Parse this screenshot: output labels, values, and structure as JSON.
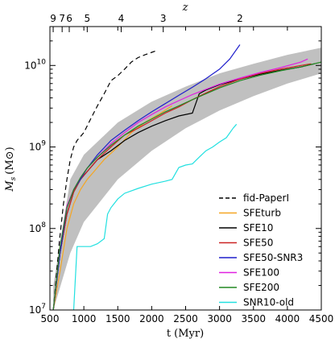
{
  "chart_data": {
    "type": "line",
    "xlabel": "t (Myr)",
    "ylabel_main": "M",
    "ylabel_sub": "s",
    "ylabel_unit": "(M",
    "ylabel_unit_sub": "⊙",
    "ylabel_close": ")",
    "top_axis_label": "z",
    "xlim": [
      500,
      4500
    ],
    "ylim": [
      10000000,
      30000000000
    ],
    "yscale": "log",
    "x_ticks": [
      500,
      1000,
      1500,
      2000,
      2500,
      3000,
      3500,
      4000,
      4500
    ],
    "x_tick_labels": [
      "500",
      "1000",
      "1500",
      "2000",
      "2500",
      "3000",
      "3500",
      "4000",
      "4500"
    ],
    "y_ticks": [
      10000000,
      100000000,
      1000000000,
      10000000000
    ],
    "y_tick_labels": [
      {
        "base": "10",
        "exp": "7"
      },
      {
        "base": "10",
        "exp": "8"
      },
      {
        "base": "10",
        "exp": "9"
      },
      {
        "base": "10",
        "exp": "10"
      }
    ],
    "top_ticks": [
      {
        "t": 548,
        "label": "9"
      },
      {
        "t": 680,
        "label": "7"
      },
      {
        "t": 785,
        "label": "6"
      },
      {
        "t": 1050,
        "label": "5"
      },
      {
        "t": 1550,
        "label": "4"
      },
      {
        "t": 2170,
        "label": "3"
      },
      {
        "t": 3300,
        "label": "2"
      }
    ],
    "legend_position": "lower-right",
    "band": {
      "color": "#c0c0c0",
      "x": [
        550,
        800,
        1000,
        1500,
        2000,
        2500,
        3000,
        3500,
        4000,
        4500
      ],
      "upper": [
        20000000,
        400000000,
        800000000,
        2000000000,
        3600000000,
        5500000000,
        8000000000,
        10500000000,
        13500000000,
        16500000000
      ],
      "lower": [
        10000000,
        50000000,
        120000000,
        400000000,
        900000000,
        1700000000,
        2800000000,
        4200000000,
        6000000000,
        8000000000
      ]
    },
    "series": [
      {
        "name": "fid-PaperI",
        "color": "#000000",
        "dash": "6,4",
        "x": [
          550,
          640,
          700,
          750,
          800,
          850,
          900,
          1000,
          1100,
          1200,
          1300,
          1400,
          1500,
          1600,
          1700,
          1800,
          1900,
          2000,
          2050
        ],
        "y": [
          10000000,
          70000000,
          200000000,
          400000000,
          700000000,
          1000000000,
          1200000000,
          1500000000,
          2200000000,
          3200000000,
          4500000000,
          6500000000,
          7500000000,
          9000000000,
          11000000000,
          12500000000,
          13500000000,
          14500000000,
          15000000000
        ]
      },
      {
        "name": "SFEturb",
        "color": "#f5a623",
        "dash": "",
        "x": [
          550,
          650,
          750,
          850,
          950,
          1050,
          1150,
          1300,
          1500,
          1700,
          1900,
          2100,
          2300
        ],
        "y": [
          10000000,
          30000000,
          100000000,
          200000000,
          300000000,
          400000000,
          500000000,
          700000000,
          1000000000,
          1500000000,
          2000000000,
          2500000000,
          3200000000
        ]
      },
      {
        "name": "SFE10",
        "color": "#000000",
        "dash": "",
        "x": [
          550,
          650,
          750,
          850,
          950,
          1050,
          1200,
          1400,
          1600,
          1800,
          2000,
          2200,
          2400,
          2600,
          2700,
          2800,
          3000,
          3300,
          3600,
          3900,
          4200,
          4400
        ],
        "y": [
          10000000,
          50000000,
          150000000,
          280000000,
          400000000,
          500000000,
          700000000,
          900000000,
          1200000000,
          1500000000,
          1800000000,
          2100000000,
          2400000000,
          2600000000,
          4500000000,
          5000000000,
          5800000000,
          6800000000,
          7800000000,
          8700000000,
          9600000000,
          10500000000
        ]
      },
      {
        "name": "SFE50",
        "color": "#cc2222",
        "dash": "",
        "x": [
          550,
          650,
          750,
          850,
          950,
          1050,
          1200,
          1400,
          1600,
          1800,
          2000,
          2200,
          2400,
          2600,
          2800,
          3000,
          3300,
          3600,
          3900,
          4200,
          4350
        ],
        "y": [
          10000000,
          50000000,
          150000000,
          280000000,
          400000000,
          500000000,
          700000000,
          1000000000,
          1400000000,
          1700000000,
          2100000000,
          2600000000,
          3100000000,
          3800000000,
          4600000000,
          5500000000,
          6800000000,
          8000000000,
          9000000000,
          10000000000,
          10500000000
        ]
      },
      {
        "name": "SFE50-SNR3",
        "color": "#1f1fcc",
        "dash": "",
        "x": [
          550,
          650,
          750,
          850,
          950,
          1050,
          1200,
          1400,
          1600,
          1800,
          2000,
          2200,
          2400,
          2600,
          2800,
          3000,
          3150,
          3300
        ],
        "y": [
          10000000,
          50000000,
          180000000,
          300000000,
          400000000,
          550000000,
          800000000,
          1200000000,
          1600000000,
          2100000000,
          2700000000,
          3400000000,
          4300000000,
          5400000000,
          6900000000,
          9000000000,
          12000000000,
          18000000000
        ]
      },
      {
        "name": "SFE100",
        "color": "#e020e0",
        "dash": "",
        "x": [
          550,
          650,
          750,
          850,
          950,
          1050,
          1200,
          1400,
          1600,
          1800,
          2000,
          2200,
          2400,
          2600,
          2800,
          3000,
          3300,
          3600,
          3900,
          4200,
          4300
        ],
        "y": [
          10000000,
          60000000,
          190000000,
          300000000,
          420000000,
          550000000,
          750000000,
          1100000000,
          1500000000,
          2000000000,
          2500000000,
          3100000000,
          3700000000,
          4400000000,
          5100000000,
          5900000000,
          7000000000,
          8200000000,
          9400000000,
          11000000000,
          12000000000
        ]
      },
      {
        "name": "SFE200",
        "color": "#228822",
        "dash": "",
        "x": [
          550,
          650,
          750,
          850,
          950,
          1050,
          1200,
          1400,
          1600,
          1800,
          2000,
          2200,
          2400,
          2600,
          2800,
          3000,
          3300,
          3600,
          3900,
          4200,
          4500
        ],
        "y": [
          10000000,
          60000000,
          180000000,
          300000000,
          420000000,
          550000000,
          750000000,
          1050000000,
          1400000000,
          1800000000,
          2200000000,
          2700000000,
          3200000000,
          3800000000,
          4500000000,
          5300000000,
          6500000000,
          7600000000,
          8600000000,
          9600000000,
          11000000000
        ]
      },
      {
        "name": "SNR10-old",
        "color": "#22e0e0",
        "dash": "",
        "x": [
          850,
          900,
          950,
          1000,
          1100,
          1200,
          1300,
          1350,
          1400,
          1500,
          1600,
          1800,
          2000,
          2200,
          2300,
          2400,
          2500,
          2600,
          2700,
          2800,
          2900,
          3000,
          3100,
          3200,
          3250
        ],
        "y": [
          10000000,
          60000000,
          60000000,
          60000000,
          60000000,
          65000000,
          75000000,
          150000000,
          180000000,
          230000000,
          270000000,
          310000000,
          350000000,
          380000000,
          400000000,
          560000000,
          600000000,
          620000000,
          750000000,
          900000000,
          1000000000,
          1150000000,
          1300000000,
          1700000000,
          1900000000
        ]
      }
    ]
  }
}
